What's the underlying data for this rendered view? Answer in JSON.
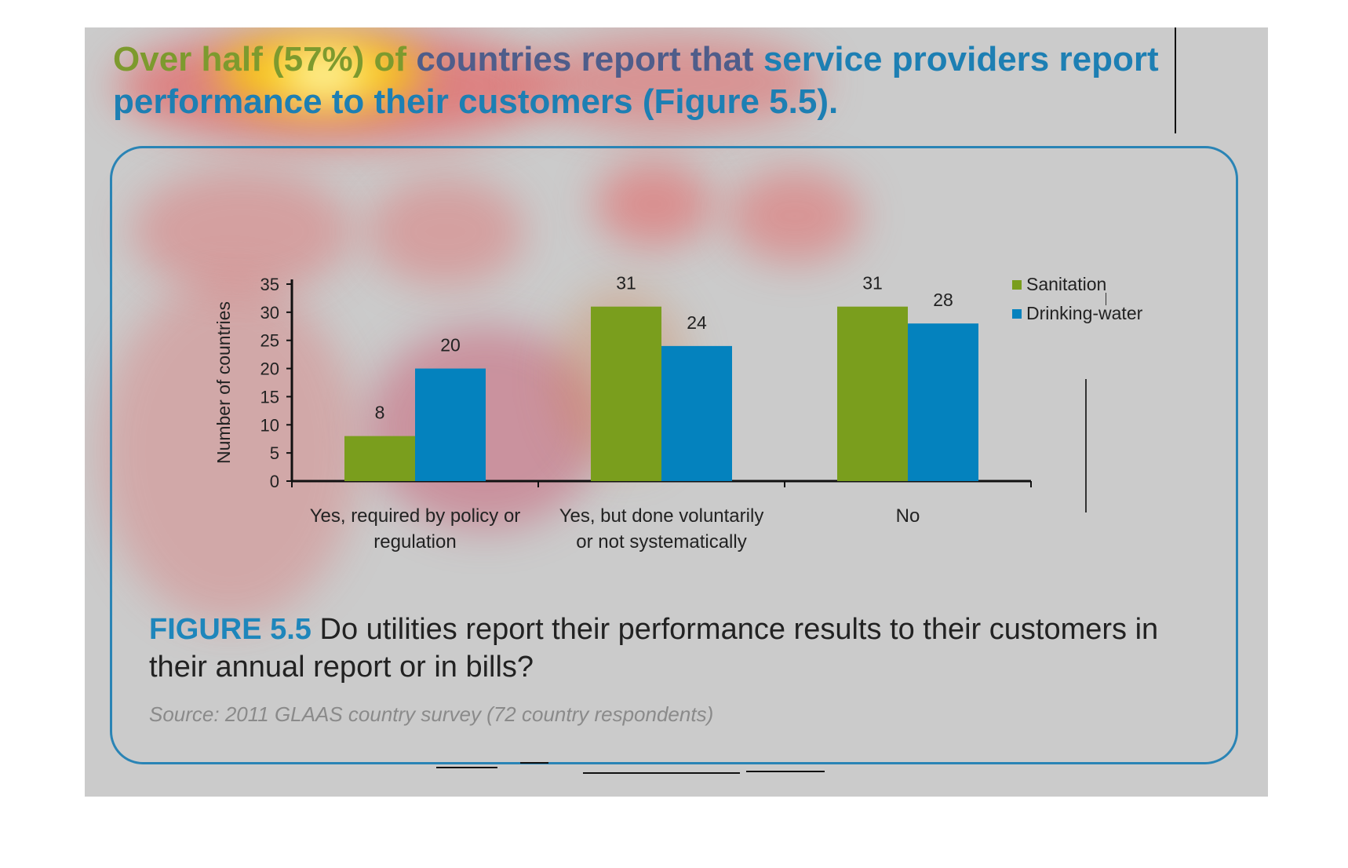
{
  "headline": {
    "part_a": "Over half (57%) of",
    "part_b": " countries report that",
    "part_c": " service providers report performance to their customers (Figure 5.5)."
  },
  "colors": {
    "sanitation": "#7a9e1d",
    "drinking_water": "#0482be",
    "accent": "#1e86bb",
    "background": "#cbcbcb"
  },
  "chart_data": {
    "type": "bar",
    "title": "",
    "ylabel": "Number of countries",
    "xlabel": "",
    "ylim": [
      0,
      35
    ],
    "yticks": [
      0,
      5,
      10,
      15,
      20,
      25,
      30,
      35
    ],
    "categories": [
      [
        "Yes, required by policy or",
        "regulation"
      ],
      [
        "Yes, but done voluntarily",
        "or not systematically"
      ],
      [
        "No"
      ]
    ],
    "series": [
      {
        "name": "Sanitation",
        "values": [
          8,
          31,
          31
        ],
        "color": "#7a9e1d"
      },
      {
        "name": "Drinking-water",
        "values": [
          20,
          24,
          28
        ],
        "color": "#0482be"
      }
    ],
    "data_labels": true,
    "legend": "top-right",
    "grid": false
  },
  "caption": {
    "label": "FIGURE 5.5",
    "text": " Do utilities report their performance results to their customers in their annual report or in bills?"
  },
  "source": "Source: 2011 GLAAS country survey (72 country respondents)"
}
